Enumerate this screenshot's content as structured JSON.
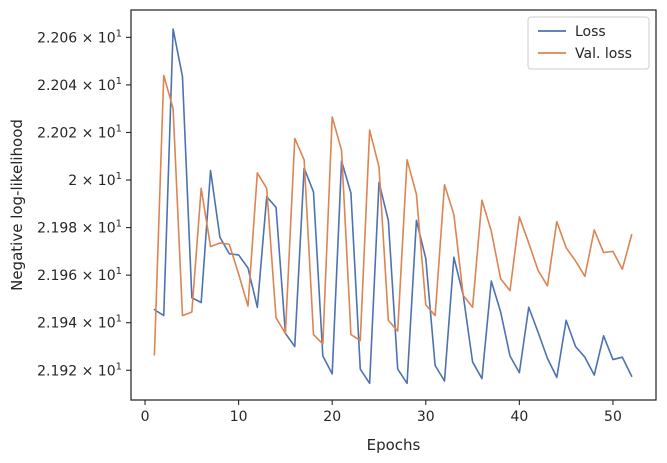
{
  "chart_data": {
    "type": "line",
    "title": "",
    "xlabel": "Epochs",
    "ylabel": "Negative log-likelihood",
    "xlim": [
      -1.5,
      54.6
    ],
    "ylim": [
      21.9075,
      22.0715
    ],
    "x_ticks": [
      0,
      10,
      20,
      30,
      40,
      50
    ],
    "x_tick_labels": [
      "0",
      "10",
      "20",
      "30",
      "40",
      "50"
    ],
    "y_ticks": [
      21.92,
      21.94,
      21.96,
      21.98,
      22.0,
      22.02,
      22.04,
      22.06
    ],
    "y_tick_labels": [
      {
        "mantissa": "2.192",
        "exp": "1"
      },
      {
        "mantissa": "2.194",
        "exp": "1"
      },
      {
        "mantissa": "2.196",
        "exp": "1"
      },
      {
        "mantissa": "2.198",
        "exp": "1"
      },
      {
        "mantissa": "2",
        "exp": "1"
      },
      {
        "mantissa": "2.202",
        "exp": "1"
      },
      {
        "mantissa": "2.204",
        "exp": "1"
      },
      {
        "mantissa": "2.206",
        "exp": "1"
      }
    ],
    "y_tick_base": "× 10",
    "grid": false,
    "legend_position": "top-right",
    "x": [
      1,
      2,
      3,
      4,
      5,
      6,
      7,
      8,
      9,
      10,
      11,
      12,
      13,
      14,
      15,
      16,
      17,
      18,
      19,
      20,
      21,
      22,
      23,
      24,
      25,
      26,
      27,
      28,
      29,
      30,
      31,
      32,
      33,
      34,
      35,
      36,
      37,
      38,
      39,
      40,
      41,
      42,
      43,
      44,
      45,
      46,
      47,
      48,
      49,
      50,
      51,
      52
    ],
    "series": [
      {
        "name": "Loss",
        "color": "#4c72b0",
        "values": [
          21.9455,
          21.943,
          22.0635,
          22.0435,
          21.9505,
          21.9485,
          22.004,
          21.976,
          21.969,
          21.9685,
          21.963,
          21.9465,
          21.993,
          21.9885,
          21.9355,
          21.93,
          22.005,
          21.995,
          21.926,
          21.9185,
          22.008,
          21.9945,
          21.9205,
          21.9145,
          21.999,
          21.983,
          21.9205,
          21.9145,
          21.983,
          21.967,
          21.922,
          21.9155,
          21.9675,
          21.9515,
          21.9235,
          21.9165,
          21.9575,
          21.9445,
          21.926,
          21.919,
          21.9465,
          21.936,
          21.925,
          21.917,
          21.941,
          21.93,
          21.9255,
          21.918,
          21.9345,
          21.9245,
          21.9255,
          21.9175
        ]
      },
      {
        "name": "Val. loss",
        "color": "#dd8452",
        "values": [
          21.9265,
          22.044,
          22.03,
          21.943,
          21.9445,
          21.9965,
          21.972,
          21.9735,
          21.973,
          21.9605,
          21.947,
          22.003,
          21.9965,
          21.942,
          21.9355,
          22.0175,
          22.0085,
          21.935,
          21.931,
          22.0265,
          22.0125,
          21.935,
          21.9325,
          22.021,
          22.0055,
          21.941,
          21.9365,
          22.0085,
          21.994,
          21.9475,
          21.943,
          21.998,
          21.9855,
          21.9515,
          21.9465,
          21.9915,
          21.9785,
          21.9585,
          21.9535,
          21.9845,
          21.9735,
          21.962,
          21.9555,
          21.9825,
          21.9715,
          21.966,
          21.9595,
          21.979,
          21.9695,
          21.97,
          21.9625,
          21.977
        ]
      }
    ]
  }
}
